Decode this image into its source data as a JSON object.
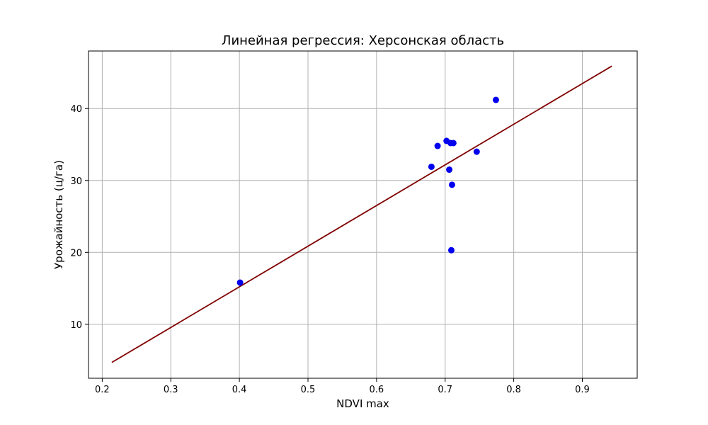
{
  "chart_data": {
    "type": "scatter",
    "title": "Линейная регрессия: Херсонская область",
    "xlabel": "NDVI max",
    "ylabel": "Урожайность (ц/га)",
    "xlim": [
      0.18,
      0.98
    ],
    "ylim": [
      2.5,
      48
    ],
    "grid": true,
    "x_ticks": [
      0.2,
      0.3,
      0.4,
      0.5,
      0.6,
      0.7,
      0.8,
      0.9
    ],
    "x_tick_labels": [
      "0.2",
      "0.3",
      "0.4",
      "0.5",
      "0.6",
      "0.7",
      "0.8",
      "0.9"
    ],
    "y_ticks": [
      10,
      20,
      30,
      40
    ],
    "y_tick_labels": [
      "10",
      "20",
      "30",
      "40"
    ],
    "series": [
      {
        "type": "scatter",
        "color": "#0000ee",
        "points": [
          {
            "x": 0.401,
            "y": 15.8
          },
          {
            "x": 0.68,
            "y": 31.9
          },
          {
            "x": 0.689,
            "y": 34.8
          },
          {
            "x": 0.702,
            "y": 35.5
          },
          {
            "x": 0.706,
            "y": 31.5
          },
          {
            "x": 0.708,
            "y": 35.2
          },
          {
            "x": 0.712,
            "y": 35.2
          },
          {
            "x": 0.71,
            "y": 29.4
          },
          {
            "x": 0.709,
            "y": 20.3
          },
          {
            "x": 0.746,
            "y": 34.0
          },
          {
            "x": 0.774,
            "y": 41.2
          }
        ]
      },
      {
        "type": "line",
        "color": "#800000",
        "points": [
          {
            "x": 0.214,
            "y": 4.7
          },
          {
            "x": 0.943,
            "y": 45.9
          }
        ]
      }
    ]
  }
}
